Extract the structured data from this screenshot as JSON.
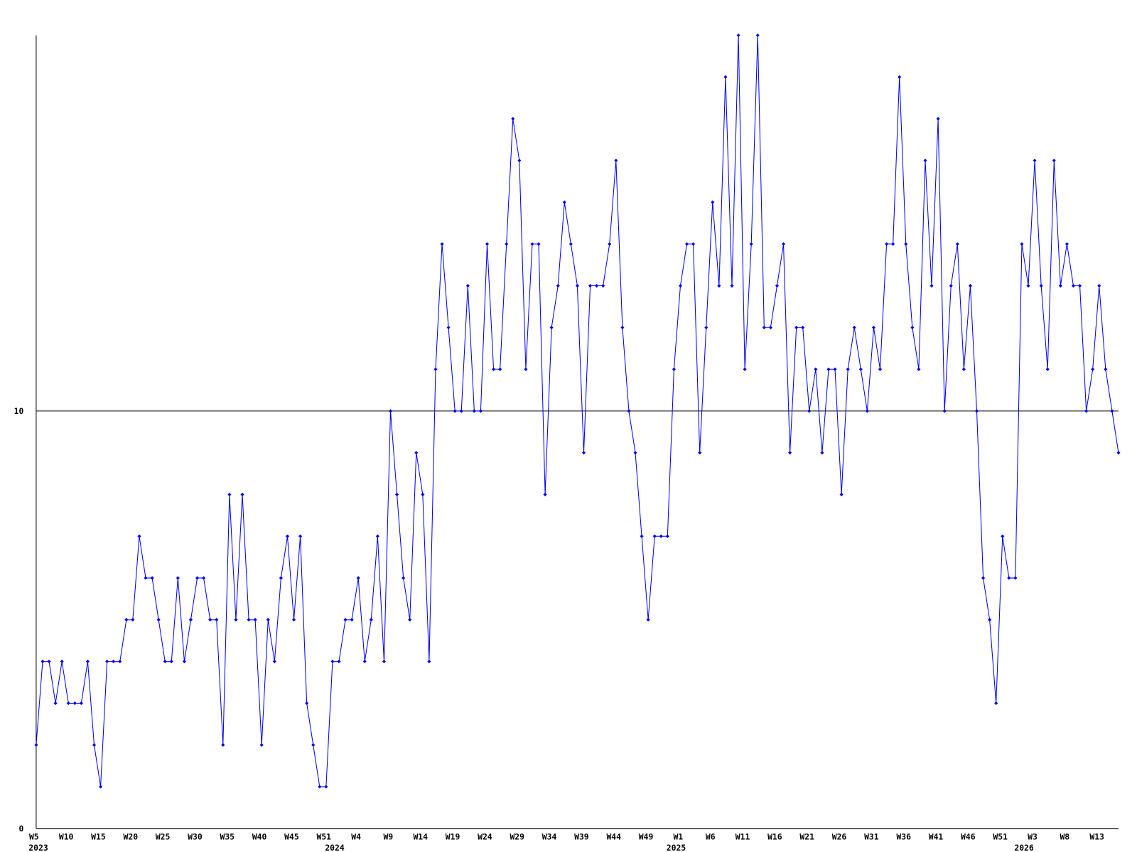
{
  "chart_data": {
    "type": "line",
    "categories": [
      "W5",
      null,
      null,
      null,
      null,
      "W10",
      null,
      null,
      null,
      null,
      "W15",
      null,
      null,
      null,
      null,
      "W20",
      null,
      null,
      null,
      null,
      "W25",
      null,
      null,
      null,
      null,
      "W30",
      null,
      null,
      null,
      null,
      "W35",
      null,
      null,
      null,
      null,
      "W40",
      null,
      null,
      null,
      null,
      "W45",
      null,
      null,
      null,
      null,
      "W51",
      null,
      null,
      null,
      null,
      "W4",
      null,
      null,
      null,
      null,
      "W9",
      null,
      null,
      null,
      null,
      "W14",
      null,
      null,
      null,
      null,
      "W19",
      null,
      null,
      null,
      null,
      "W24",
      null,
      null,
      null,
      null,
      "W29",
      null,
      null,
      null,
      null,
      "W34",
      null,
      null,
      null,
      null,
      "W39",
      null,
      null,
      null,
      null,
      "W44",
      null,
      null,
      null,
      null,
      "W49",
      null,
      null,
      null,
      null,
      "W1",
      null,
      null,
      null,
      null,
      "W6",
      null,
      null,
      null,
      null,
      "W11",
      null,
      null,
      null,
      null,
      "W16",
      null,
      null,
      null,
      null,
      "W21",
      null,
      null,
      null,
      null,
      "W26",
      null,
      null,
      null,
      null,
      "W31",
      null,
      null,
      null,
      null,
      "W36",
      null,
      null,
      null,
      null,
      "W41",
      null,
      null,
      null,
      null,
      "W46",
      null,
      null,
      null,
      null,
      "W51",
      null,
      null,
      null,
      null,
      "W3",
      null,
      null,
      null,
      null,
      "W8",
      null,
      null,
      null,
      null,
      "W13",
      null,
      null,
      null
    ],
    "years": [
      "2023",
      null,
      null,
      null,
      null,
      null,
      null,
      null,
      null,
      null,
      null,
      null,
      null,
      null,
      null,
      null,
      null,
      null,
      null,
      null,
      null,
      null,
      null,
      null,
      null,
      null,
      null,
      null,
      null,
      null,
      null,
      null,
      null,
      null,
      null,
      null,
      null,
      null,
      null,
      null,
      null,
      null,
      null,
      null,
      null,
      null,
      "2024",
      null,
      null,
      null,
      null,
      null,
      null,
      null,
      null,
      null,
      null,
      null,
      null,
      null,
      null,
      null,
      null,
      null,
      null,
      null,
      null,
      null,
      null,
      null,
      null,
      null,
      null,
      null,
      null,
      null,
      null,
      null,
      null,
      null,
      null,
      null,
      null,
      null,
      null,
      null,
      null,
      null,
      null,
      null,
      null,
      null,
      null,
      null,
      null,
      null,
      null,
      null,
      null,
      "2025",
      null,
      null,
      null,
      null,
      null,
      null,
      null,
      null,
      null,
      null,
      null,
      null,
      null,
      null,
      null,
      null,
      null,
      null,
      null,
      null,
      null,
      null,
      null,
      null,
      null,
      null,
      null,
      null,
      null,
      null,
      null,
      null,
      null,
      null,
      null,
      null,
      null,
      null,
      null,
      null,
      null,
      null,
      null,
      null,
      null,
      null,
      null,
      null,
      null,
      null,
      null,
      null,
      null,
      "2026",
      null,
      null,
      null,
      null,
      null,
      null,
      null,
      null,
      null,
      null,
      null,
      null,
      null,
      null,
      null
    ],
    "values": [
      2,
      4,
      4,
      3,
      4,
      3,
      3,
      3,
      4,
      2,
      1,
      4,
      4,
      4,
      5,
      5,
      7,
      6,
      6,
      5,
      4,
      4,
      6,
      4,
      5,
      6,
      6,
      5,
      5,
      2,
      8,
      5,
      8,
      5,
      5,
      2,
      5,
      4,
      6,
      7,
      5,
      7,
      3,
      2,
      1,
      1,
      4,
      4,
      5,
      5,
      6,
      4,
      5,
      7,
      4,
      10,
      8,
      6,
      5,
      9,
      8,
      4,
      11,
      14,
      12,
      10,
      10,
      13,
      10,
      10,
      14,
      11,
      11,
      14,
      17,
      16,
      11,
      14,
      14,
      8,
      12,
      13,
      15,
      14,
      13,
      9,
      13,
      13,
      13,
      14,
      16,
      12,
      10,
      9,
      7,
      5,
      7,
      7,
      7,
      11,
      13,
      14,
      14,
      9,
      12,
      15,
      13,
      18,
      13,
      19,
      11,
      14,
      19,
      12,
      12,
      13,
      14,
      9,
      12,
      12,
      10,
      11,
      9,
      11,
      11,
      8,
      11,
      12,
      11,
      10,
      12,
      11,
      14,
      14,
      18,
      14,
      12,
      11,
      16,
      13,
      17,
      10,
      13,
      14,
      11,
      13,
      10,
      6,
      5,
      3,
      7,
      6,
      6,
      14,
      13,
      16,
      13,
      11,
      16,
      13,
      14,
      13,
      13,
      10,
      11,
      13,
      11,
      10,
      9
    ],
    "color": "#0000ff",
    "ylim": [
      0,
      19
    ],
    "yticks": [
      0,
      10
    ],
    "grid": true
  }
}
